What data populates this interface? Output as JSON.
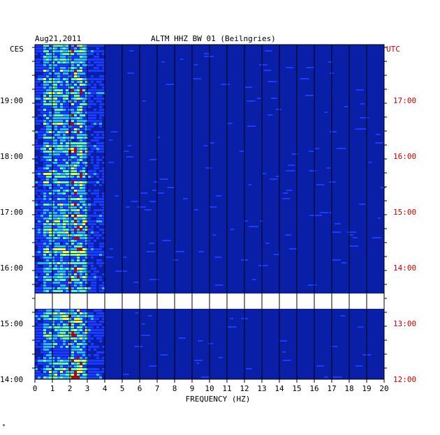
{
  "header": {
    "date": "Aug21,2011",
    "title": "ALTM HHZ BW 01 (Beilngries)"
  },
  "left_axis": {
    "zone": "CES",
    "ticks": [
      "19:00",
      "18:00",
      "17:00",
      "16:00",
      "15:00",
      "14:00"
    ]
  },
  "right_axis": {
    "zone": "UTC",
    "ticks": [
      "17:00",
      "16:00",
      "15:00",
      "14:00",
      "13:00",
      "12:00"
    ]
  },
  "footer_mark": "*",
  "chart_data": {
    "type": "heatmap",
    "xlabel": "FREQUENCY (HZ)",
    "x_ticks": [
      "0",
      "1",
      "2",
      "3",
      "4",
      "5",
      "6",
      "7",
      "8",
      "9",
      "10",
      "11",
      "12",
      "13",
      "14",
      "15",
      "16",
      "17",
      "18",
      "19",
      "20"
    ],
    "xlim": [
      0,
      20
    ],
    "ylim_local": [
      "14:00",
      "19:45"
    ],
    "grid": true,
    "colors": {
      "background": "#0a1fa8",
      "low": "#1a3cff",
      "mid": "#20c0ff",
      "high": "#ffff30",
      "peak": "#d40000"
    },
    "dominant_band_hz": [
      0,
      4
    ],
    "data_gap_local": [
      "15:15",
      "15:30"
    ]
  }
}
